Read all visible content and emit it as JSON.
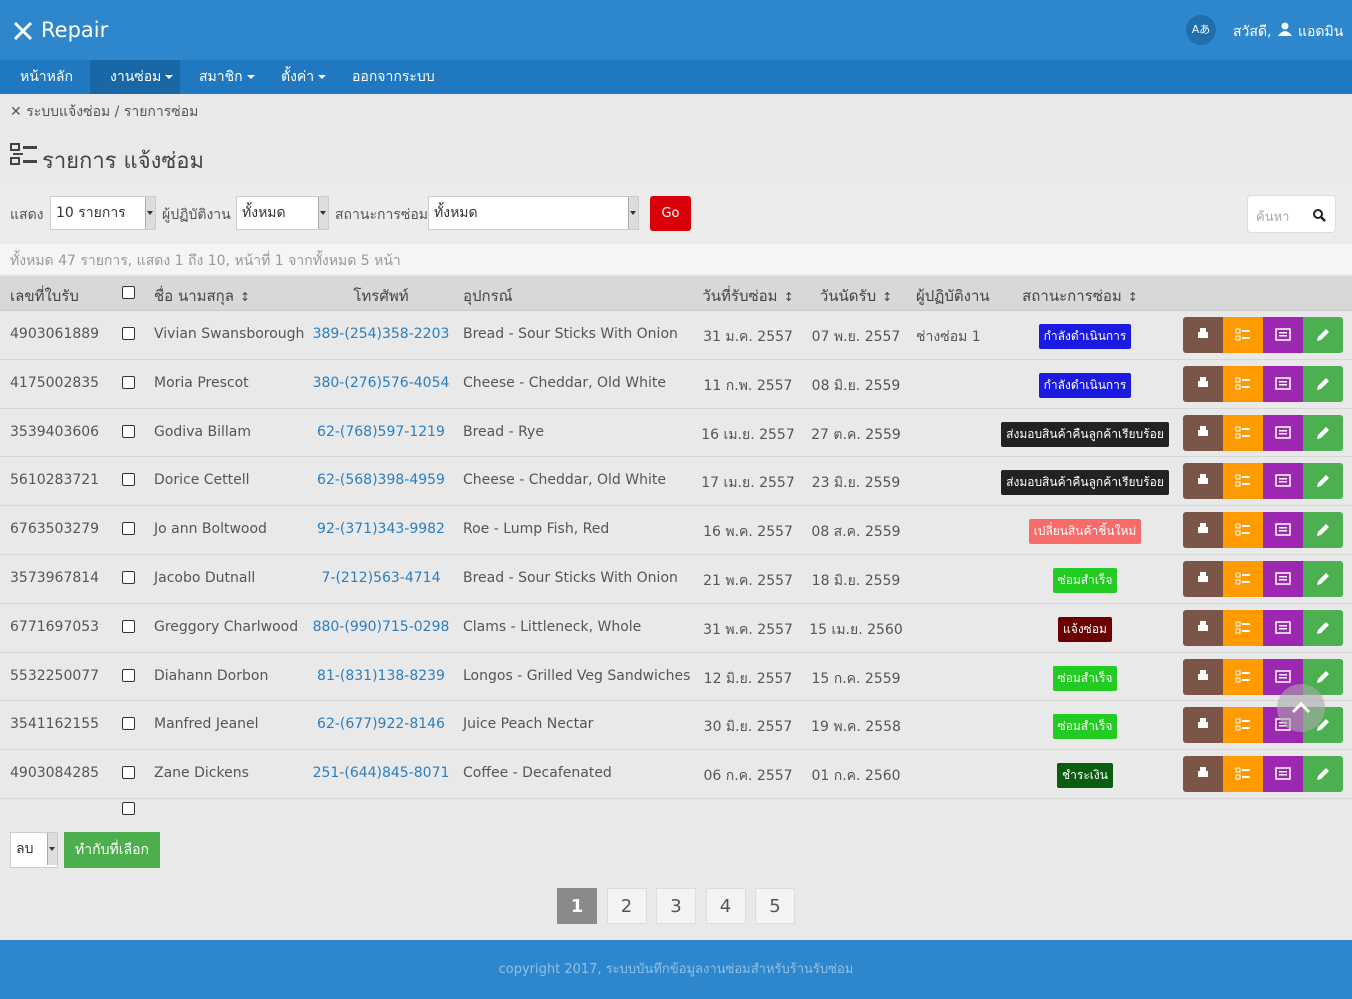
{
  "header": {
    "brand": "Repair",
    "lang": "Aあ",
    "greeting": "สวัสดี,",
    "user": "แอดมิน"
  },
  "nav": [
    "หน้าหลัก",
    "งานซ่อม",
    "สมาชิก",
    "ตั้งค่า",
    "ออกจากระบบ"
  ],
  "breadcrumb": {
    "items": [
      "ระบบแจ้งซ่อม",
      "รายการซ่อม"
    ],
    "separator": "/"
  },
  "page_title": "รายการ แจ้งซ่อม",
  "filters": {
    "show_label": "แสดง",
    "show_value": "10 รายการ",
    "operator_label": "ผู้ปฏิบัติงาน",
    "operator_value": "ทั้งหมด",
    "status_label": "สถานะการซ่อม",
    "status_value": "ทั้งหมด",
    "go": "Go",
    "search_placeholder": "ค้นหา"
  },
  "summary": "ทั้งหมด 47 รายการ, แสดง 1 ถึง 10, หน้าที่ 1 จากทั้งหมด 5 หน้า",
  "table": {
    "columns": {
      "receipt": "เลขที่ใบรับ",
      "name": "ชื่อ นามสกุล",
      "phone": "โทรศัพท์",
      "device": "อุปกรณ์",
      "received": "วันที่รับซ่อม",
      "due": "วันนัดรับ",
      "operator": "ผู้ปฏิบัติงาน",
      "status": "สถานะการซ่อม"
    },
    "rows": [
      {
        "receipt": "4903061889",
        "name": "Vivian Swansborough",
        "phone": "389-(254)358-2203",
        "device": "Bread - Sour Sticks With Onion",
        "received": "31 ม.ค. 2557",
        "due": "07 พ.ย. 2557",
        "operator": "ช่างซ่อม 1",
        "status": "กำลังดำเนินการ",
        "status_color": "#1a1ae0"
      },
      {
        "receipt": "4175002835",
        "name": "Moria Prescot",
        "phone": "380-(276)576-4054",
        "device": "Cheese - Cheddar, Old White",
        "received": "11 ก.พ. 2557",
        "due": "08 มิ.ย. 2559",
        "status": "กำลังดำเนินการ",
        "status_color": "#1a1ae0"
      },
      {
        "receipt": "3539403606",
        "name": "Godiva Billam",
        "phone": "62-(768)597-1219",
        "device": "Bread - Rye",
        "received": "16 เม.ย. 2557",
        "due": "27 ต.ค. 2559",
        "status": "ส่งมอบสินค้าคืนลูกค้าเรียบร้อย",
        "status_color": "#222222"
      },
      {
        "receipt": "5610283721",
        "name": "Dorice Cettell",
        "phone": "62-(568)398-4959",
        "device": "Cheese - Cheddar, Old White",
        "received": "17 เม.ย. 2557",
        "due": "23 มิ.ย. 2559",
        "status": "ส่งมอบสินค้าคืนลูกค้าเรียบร้อย",
        "status_color": "#222222"
      },
      {
        "receipt": "6763503279",
        "name": "Jo ann Boltwood",
        "phone": "92-(371)343-9982",
        "device": "Roe - Lump Fish, Red",
        "received": "16 พ.ค. 2557",
        "due": "08 ส.ค. 2559",
        "status": "เปลี่ยนสินค้าชิ้นใหม่",
        "status_color": "#f76b6b"
      },
      {
        "receipt": "3573967814",
        "name": "Jacobo Dutnall",
        "phone": "7-(212)563-4714",
        "device": "Bread - Sour Sticks With Onion",
        "received": "21 พ.ค. 2557",
        "due": "18 มิ.ย. 2559",
        "status": "ซ่อมสำเร็จ",
        "status_color": "#22cc22"
      },
      {
        "receipt": "6771697053",
        "name": "Greggory Charlwood",
        "phone": "880-(990)715-0298",
        "device": "Clams - Littleneck, Whole",
        "received": "31 พ.ค. 2557",
        "due": "15 เม.ย. 2560",
        "status": "แจ้งซ่อม",
        "status_color": "#6b0000"
      },
      {
        "receipt": "5532250077",
        "name": "Diahann Dorbon",
        "phone": "81-(831)138-8239",
        "device": "Longos - Grilled Veg Sandwiches",
        "received": "12 มิ.ย. 2557",
        "due": "15 ก.ค. 2559",
        "status": "ซ่อมสำเร็จ",
        "status_color": "#22cc22"
      },
      {
        "receipt": "3541162155",
        "name": "Manfred Jeanel",
        "phone": "62-(677)922-8146",
        "device": "Juice Peach Nectar",
        "received": "30 มิ.ย. 2557",
        "due": "19 พ.ค. 2558",
        "status": "ซ่อมสำเร็จ",
        "status_color": "#22cc22"
      },
      {
        "receipt": "4903084285",
        "name": "Zane Dickens",
        "phone": "251-(644)845-8071",
        "device": "Coffee - Decafenated",
        "received": "06 ก.ค. 2557",
        "due": "01 ก.ค. 2560",
        "status": "ชำระเงิน",
        "status_color": "#0b5e10"
      }
    ]
  },
  "bulk": {
    "action": "ลบ",
    "button": "ทำกับที่เลือก"
  },
  "pagination": {
    "pages": [
      1,
      2,
      3,
      4,
      5
    ],
    "current": 1
  },
  "footer": "copyright 2017, ระบบบันทึกข้อมูลงานซ่อมสำหรับร้านรับซ่อม"
}
